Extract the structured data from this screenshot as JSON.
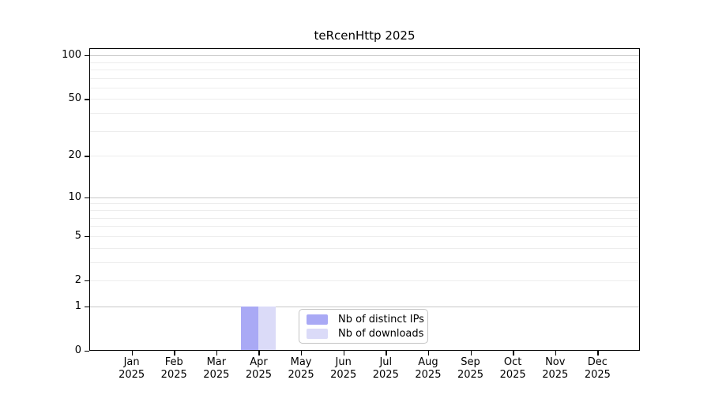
{
  "title": "teRcenHttp 2025",
  "chart_data": {
    "type": "bar",
    "title": "teRcenHttp 2025",
    "y_scale": "log10(1+x)",
    "ylim": [
      0,
      112
    ],
    "y_ticks": [
      0,
      1,
      2,
      5,
      10,
      20,
      50,
      100
    ],
    "gridlines_major": [
      1,
      10,
      100
    ],
    "gridlines_minor": [
      2,
      3,
      4,
      5,
      6,
      7,
      8,
      9,
      20,
      30,
      40,
      50,
      60,
      70,
      80,
      90
    ],
    "categories": [
      {
        "month": "Jan",
        "year": "2025"
      },
      {
        "month": "Feb",
        "year": "2025"
      },
      {
        "month": "Mar",
        "year": "2025"
      },
      {
        "month": "Apr",
        "year": "2025"
      },
      {
        "month": "May",
        "year": "2025"
      },
      {
        "month": "Jun",
        "year": "2025"
      },
      {
        "month": "Jul",
        "year": "2025"
      },
      {
        "month": "Aug",
        "year": "2025"
      },
      {
        "month": "Sep",
        "year": "2025"
      },
      {
        "month": "Oct",
        "year": "2025"
      },
      {
        "month": "Nov",
        "year": "2025"
      },
      {
        "month": "Dec",
        "year": "2025"
      }
    ],
    "series": [
      {
        "name": "Nb of distinct IPs",
        "color": "#a9a9f5",
        "values": [
          0,
          0,
          0,
          1,
          0,
          0,
          0,
          0,
          0,
          0,
          0,
          0
        ]
      },
      {
        "name": "Nb of downloads",
        "color": "#dbdbf8",
        "values": [
          0,
          0,
          0,
          1,
          0,
          0,
          0,
          0,
          0,
          0,
          0,
          0
        ]
      }
    ],
    "legend_position": "bottom-center",
    "colors": {
      "axis": "#000000",
      "grid_major": "#c8c8c8",
      "grid_minor": "#ededed",
      "background": "#ffffff"
    }
  }
}
